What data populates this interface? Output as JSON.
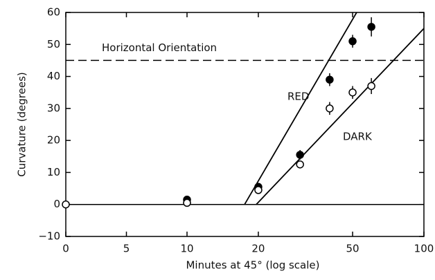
{
  "chart_data": {
    "type": "scatter",
    "xlabel": "Minutes at 45° (log scale)",
    "ylabel": "Curvature (degrees)",
    "xscale": "log",
    "xlim": [
      0,
      100
    ],
    "xticks": [
      0,
      5,
      10,
      20,
      50,
      100
    ],
    "ylim": [
      -10,
      60
    ],
    "yticks": [
      {
        "value": -10,
        "label": "−10"
      },
      0,
      10,
      20,
      30,
      40,
      50,
      60
    ],
    "hlines": [
      {
        "y": 0,
        "style": "solid"
      },
      {
        "y": 45,
        "style": "dashed",
        "label": "Horizontal Orientation"
      }
    ],
    "series": [
      {
        "name": "RED",
        "color": "#000000",
        "marker": "filled",
        "x": [
          10,
          20,
          30,
          40,
          50,
          60
        ],
        "values": [
          1.5,
          5.5,
          15.5,
          39,
          51,
          55.5
        ],
        "errors": [
          0.5,
          1,
          1.5,
          2,
          2,
          3
        ],
        "fit": {
          "x": [
            17.5,
            52
          ],
          "y": [
            0,
            60
          ]
        }
      },
      {
        "name": "DARK",
        "color": "#000000",
        "marker": "open",
        "x": [
          0,
          10,
          20,
          30,
          40,
          50,
          60
        ],
        "values": [
          0,
          0.5,
          4.5,
          12.5,
          30,
          35,
          37
        ],
        "errors": [
          0,
          0.5,
          1,
          1,
          2,
          2,
          2.5
        ],
        "fit": {
          "x": [
            19.6,
            100
          ],
          "y": [
            0,
            55
          ]
        }
      }
    ]
  }
}
